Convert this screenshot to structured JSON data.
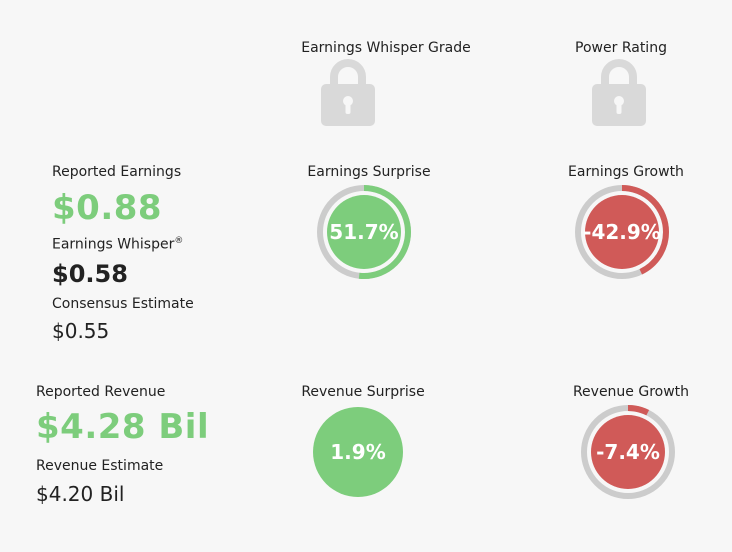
{
  "header": {
    "grade_label": "Earnings Whisper Grade",
    "power_label": "Power Rating"
  },
  "icons": {
    "grade": "lock-icon",
    "power": "lock-icon"
  },
  "earnings": {
    "reported_label": "Reported Earnings",
    "reported_value": "$0.88",
    "whisper_label": "Earnings Whisper",
    "whisper_mark": "®",
    "whisper_value": "$0.58",
    "consensus_label": "Consensus Estimate",
    "consensus_value": "$0.55",
    "surprise_label": "Earnings Surprise",
    "surprise_value": "51.7%",
    "surprise_pct": 51.7,
    "growth_label": "Earnings Growth",
    "growth_value": "-42.9%",
    "growth_pct": -42.9
  },
  "revenue": {
    "reported_label": "Reported Revenue",
    "reported_value": "$4.28 Bil",
    "estimate_label": "Revenue Estimate",
    "estimate_value": "$4.20 Bil",
    "surprise_label": "Revenue Surprise",
    "surprise_value": "1.9%",
    "surprise_pct": 1.9,
    "growth_label": "Revenue Growth",
    "growth_value": "-7.4%",
    "growth_pct": -7.4
  },
  "colors": {
    "positive": "#7dcd7c",
    "negative": "#d05a58",
    "track": "#cccccc",
    "lock": "#d9d9d9"
  }
}
